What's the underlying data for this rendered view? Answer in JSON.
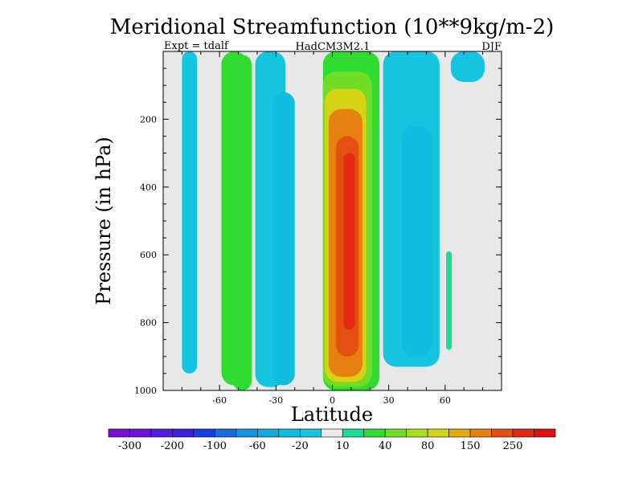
{
  "chart_data": {
    "type": "heatmap",
    "title": "Meridional Streamfunction (10**9kg/m-2)",
    "subtitle_left": "Expt = tdalf",
    "subtitle_center": "HadCM3M2.1",
    "subtitle_right": "DJF",
    "xlabel": "Latitude",
    "ylabel": "Pressure (in hPa)",
    "xlim": [
      -90,
      90
    ],
    "ylim": [
      1000,
      0
    ],
    "x_ticks": [
      -60,
      -30,
      0,
      30,
      60
    ],
    "x_tick_labels": [
      "-60",
      "-30",
      "0",
      "30",
      "60"
    ],
    "y_ticks": [
      200,
      400,
      600,
      800,
      1000
    ],
    "y_tick_labels": [
      "200",
      "400",
      "600",
      "800",
      "1000"
    ],
    "background_color": "#e8e8e8",
    "colorbar": {
      "levels": [
        -300,
        -250,
        -200,
        -150,
        -100,
        -80,
        -60,
        -40,
        -20,
        -10,
        10,
        20,
        40,
        60,
        80,
        100,
        150,
        200,
        250
      ],
      "label_text": [
        "-300",
        "-200",
        "-100",
        "-60",
        "-20",
        "10",
        "40",
        "80",
        "150",
        "250"
      ],
      "colors": [
        "#7b0fd6",
        "#6a14dc",
        "#5a19e0",
        "#3c1ee0",
        "#1a3ee6",
        "#1a6be0",
        "#1595e0",
        "#12abe0",
        "#10bde0",
        "#15c4e0",
        "#e8e8e8",
        "#16e090",
        "#2fdc2f",
        "#6fdc28",
        "#a8dc20",
        "#d6d215",
        "#e6aa10",
        "#e6800f",
        "#e45010",
        "#e42a10",
        "#e01010"
      ]
    },
    "features": [
      {
        "kind": "column",
        "lat": -76,
        "p_top": 0,
        "p_bottom": 950,
        "width": 8,
        "value": -15
      },
      {
        "kind": "column",
        "lat": -52,
        "p_top": 0,
        "p_bottom": 985,
        "width": 14,
        "value": 30
      },
      {
        "kind": "column",
        "lat": -48,
        "p_top": 10,
        "p_bottom": 1000,
        "width": 10,
        "value": 25
      },
      {
        "kind": "column",
        "lat": -33,
        "p_top": 0,
        "p_bottom": 990,
        "width": 16,
        "value": -15
      },
      {
        "kind": "column",
        "lat": -26,
        "p_top": 120,
        "p_bottom": 985,
        "width": 12,
        "value": -30
      },
      {
        "kind": "column",
        "lat": 10,
        "p_top": 0,
        "p_bottom": 1000,
        "width": 30,
        "value": 25
      },
      {
        "kind": "column",
        "lat": 8,
        "p_top": 60,
        "p_bottom": 990,
        "width": 26,
        "value": 50
      },
      {
        "kind": "column",
        "lat": 7,
        "p_top": 110,
        "p_bottom": 975,
        "width": 22,
        "value": 90
      },
      {
        "kind": "column",
        "lat": 7,
        "p_top": 170,
        "p_bottom": 960,
        "width": 18,
        "value": 160
      },
      {
        "kind": "column",
        "lat": 8,
        "p_top": 250,
        "p_bottom": 900,
        "width": 12,
        "value": 220
      },
      {
        "kind": "column",
        "lat": 9,
        "p_top": 300,
        "p_bottom": 820,
        "width": 6,
        "value": 280
      },
      {
        "kind": "column",
        "lat": 42,
        "p_top": 0,
        "p_bottom": 930,
        "width": 30,
        "value": -15
      },
      {
        "kind": "column",
        "lat": 45,
        "p_top": 220,
        "p_bottom": 900,
        "width": 16,
        "value": -30
      },
      {
        "kind": "column",
        "lat": 72,
        "p_top": 0,
        "p_bottom": 90,
        "width": 18,
        "value": -15
      },
      {
        "kind": "column",
        "lat": 62,
        "p_top": 590,
        "p_bottom": 880,
        "width": 3,
        "value": 15
      }
    ]
  }
}
